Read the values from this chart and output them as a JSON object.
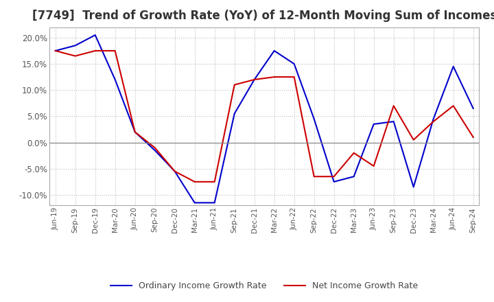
{
  "title": "[7749]  Trend of Growth Rate (YoY) of 12-Month Moving Sum of Incomes",
  "title_fontsize": 12,
  "background_color": "#ffffff",
  "grid_color": "#bbbbbb",
  "xlabels": [
    "Jun-19",
    "Sep-19",
    "Dec-19",
    "Mar-20",
    "Jun-20",
    "Sep-20",
    "Dec-20",
    "Mar-21",
    "Jun-21",
    "Sep-21",
    "Dec-21",
    "Mar-22",
    "Jun-22",
    "Sep-22",
    "Dec-22",
    "Mar-23",
    "Jun-23",
    "Sep-23",
    "Dec-23",
    "Mar-24",
    "Jun-24",
    "Sep-24"
  ],
  "ordinary_income": [
    17.5,
    18.5,
    20.5,
    12.0,
    2.0,
    -1.5,
    -5.5,
    -11.5,
    -11.5,
    5.5,
    12.0,
    17.5,
    15.0,
    4.5,
    -7.5,
    -6.5,
    3.5,
    4.0,
    -8.5,
    4.5,
    14.5,
    6.5
  ],
  "net_income": [
    17.5,
    16.5,
    17.5,
    17.5,
    2.0,
    -1.0,
    -5.5,
    -7.5,
    -7.5,
    11.0,
    12.0,
    12.5,
    12.5,
    -6.5,
    -6.5,
    -2.0,
    -4.5,
    7.0,
    0.5,
    4.0,
    7.0,
    1.0
  ],
  "ordinary_color": "#0000cc",
  "net_color": "#cc0000",
  "ylim": [
    -12,
    22
  ],
  "yticks": [
    -10.0,
    -5.0,
    0.0,
    5.0,
    10.0,
    15.0,
    20.0
  ],
  "legend_labels": [
    "Ordinary Income Growth Rate",
    "Net Income Growth Rate"
  ],
  "figsize": [
    7.2,
    4.4
  ],
  "dpi": 100
}
